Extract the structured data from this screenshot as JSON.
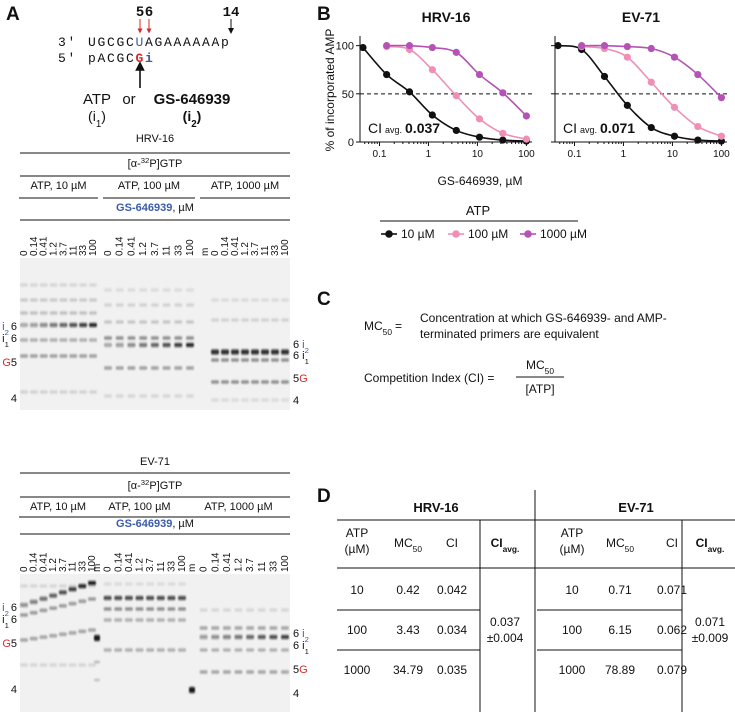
{
  "panel_a": {
    "label": "A",
    "positions": {
      "p5": 5,
      "p6": 6,
      "p14": 14
    },
    "template": {
      "prefix": "3′",
      "start": "UGCGC",
      "site": "U",
      "rest": "AGAAAAAAp"
    },
    "primer": {
      "prefix": "5′",
      "start": "pACGC",
      "g": "G",
      "i": "i"
    },
    "substrates": {
      "atp": "ATP",
      "or": "or",
      "analog": "GS-646939",
      "open": "(i",
      "atp_sub": "1",
      "analog_sub": "2",
      "close": ")"
    },
    "gels": [
      {
        "title": "HRV-16",
        "radiolabel": {
          "pre": "[α-",
          "sup": "32",
          "post": "P]GTP"
        },
        "conditions": [
          "ATP, 10 µM",
          "ATP, 100 µM",
          "ATP, 1000 µM"
        ],
        "analog": "GS-646939",
        "unit": ", µM",
        "lanes": [
          [
            0,
            0.14,
            0.41,
            1.2,
            3.7,
            11,
            33,
            100
          ],
          [
            0,
            0.14,
            0.41,
            1.2,
            3.7,
            11,
            33,
            100
          ],
          [
            "m",
            0,
            0.14,
            0.41,
            1.2,
            3.7,
            11,
            33,
            100
          ]
        ],
        "left_labels": [
          {
            "id": "i",
            "sub": "2",
            "pos": 6
          },
          {
            "id": "i",
            "sub": "1",
            "pos": 6
          },
          {
            "id": "G",
            "pos": 5
          },
          {
            "pos": 4
          }
        ],
        "right_labels": [
          {
            "id": "i",
            "sub": "2",
            "pos": 6
          },
          {
            "id": "i",
            "sub": "1",
            "pos": 6
          },
          {
            "id": "G",
            "pos": 5
          },
          {
            "pos": 4
          }
        ]
      },
      {
        "title": "EV-71",
        "radiolabel": {
          "pre": "[α-",
          "sup": "32",
          "post": "P]GTP"
        },
        "conditions": [
          "ATP, 10 µM",
          "ATP, 100 µM",
          "ATP, 1000 µM"
        ],
        "analog": "GS-646939",
        "unit": ", µM",
        "lanes": [
          [
            0,
            0.14,
            0.41,
            1.2,
            3.7,
            11,
            33,
            100
          ],
          [
            "m",
            0,
            0.14,
            0.41,
            1.2,
            3.7,
            11,
            33,
            100
          ],
          [
            "m",
            0,
            0.14,
            0.41,
            1.2,
            3.7,
            11,
            33,
            100
          ]
        ],
        "left_labels": [
          {
            "id": "i",
            "sub": "2",
            "pos": 6
          },
          {
            "id": "i",
            "sub": "1",
            "pos": 6
          },
          {
            "id": "G",
            "pos": 5
          },
          {
            "pos": 4
          }
        ],
        "right_labels": [
          {
            "id": "i",
            "sub": "2",
            "pos": 6
          },
          {
            "id": "i",
            "sub": "1",
            "pos": 6
          },
          {
            "id": "G",
            "pos": 5
          },
          {
            "pos": 4
          }
        ]
      }
    ]
  },
  "panel_b": {
    "label": "B"
  },
  "chart_data": [
    {
      "type": "line",
      "title": "HRV-16",
      "xlabel": "GS-646939, µM",
      "ylabel": "% of incorporated AMP",
      "legend_title": "ATP",
      "log_x": true,
      "xlim": [
        0.04,
        130
      ],
      "xticks": [
        0.1,
        1,
        10,
        100
      ],
      "ylim": [
        0,
        110
      ],
      "yticks": [
        0,
        50,
        100
      ],
      "show_ytick_labels": true,
      "reference_line": 50,
      "annotation": {
        "text": "CI",
        "sub": "avg.",
        "value": 0.037
      },
      "series": [
        {
          "name": "10 µM",
          "color": "#111111",
          "x": [
            0.046,
            0.14,
            0.41,
            1.2,
            3.7,
            11,
            33,
            100
          ],
          "values": [
            98,
            70,
            52,
            28,
            12,
            5,
            2,
            1
          ]
        },
        {
          "name": "100 µM",
          "color": "#f08fb6",
          "x": [
            0.14,
            0.41,
            1.2,
            3.7,
            11,
            33,
            100
          ],
          "values": [
            99,
            96,
            75,
            48,
            24,
            9,
            3
          ]
        },
        {
          "name": "1000 µM",
          "color": "#b552b5",
          "x": [
            0.14,
            0.41,
            1.2,
            3.7,
            11,
            33,
            100
          ],
          "values": [
            100,
            100,
            98,
            93,
            70,
            51,
            27
          ]
        }
      ]
    },
    {
      "type": "line",
      "title": "EV-71",
      "log_x": true,
      "xlim": [
        0.04,
        130
      ],
      "xticks": [
        0.1,
        1,
        10,
        100
      ],
      "ylim": [
        0,
        110
      ],
      "yticks": [
        0,
        50,
        100
      ],
      "show_ytick_labels": false,
      "reference_line": 50,
      "annotation": {
        "text": "CI",
        "sub": "avg.",
        "value": 0.071
      },
      "series": [
        {
          "name": "10 µM",
          "color": "#111111",
          "x": [
            0.046,
            0.14,
            0.41,
            1.2,
            3.7,
            11,
            33,
            100
          ],
          "values": [
            100,
            96,
            68,
            38,
            15,
            6,
            2,
            1
          ]
        },
        {
          "name": "100 µM",
          "color": "#f08fb6",
          "x": [
            0.14,
            0.41,
            1.2,
            3.7,
            11,
            33,
            100
          ],
          "values": [
            99,
            97,
            88,
            62,
            36,
            16,
            6
          ]
        },
        {
          "name": "1000 µM",
          "color": "#b552b5",
          "x": [
            0.14,
            0.41,
            1.2,
            3.7,
            11,
            33,
            100
          ],
          "values": [
            100,
            100,
            99,
            97,
            88,
            70,
            46
          ]
        }
      ]
    }
  ],
  "panel_c": {
    "label": "C",
    "definition": {
      "term": "MC",
      "term_sub": "50",
      "eq": "=",
      "lines": [
        "Concentration at which GS-646939- and AMP-",
        "terminated primers are equivalent"
      ]
    },
    "formula": {
      "lhs": "Competition Index (CI) =",
      "num": "MC",
      "num_sub": "50",
      "den": "[ATP]"
    }
  },
  "panel_d": {
    "label": "D",
    "headers": {
      "atp": "ATP",
      "atp_unit": "(µM)",
      "mc": "MC",
      "mc_sub": "50",
      "ci": "CI",
      "ci_avg": "CI",
      "ci_avg_sub": "avg."
    },
    "groups": [
      {
        "title": "HRV-16",
        "rows": [
          [
            10,
            0.42,
            0.042
          ],
          [
            100,
            3.43,
            0.034
          ],
          [
            1000,
            34.79,
            0.035
          ]
        ],
        "ci_avg": 0.037,
        "ci_sd": "±0.004"
      },
      {
        "title": "EV-71",
        "rows": [
          [
            10,
            0.71,
            0.071
          ],
          [
            100,
            6.15,
            0.062
          ],
          [
            1000,
            78.89,
            0.079
          ]
        ],
        "ci_avg": 0.071,
        "ci_sd": "±0.009"
      }
    ]
  }
}
